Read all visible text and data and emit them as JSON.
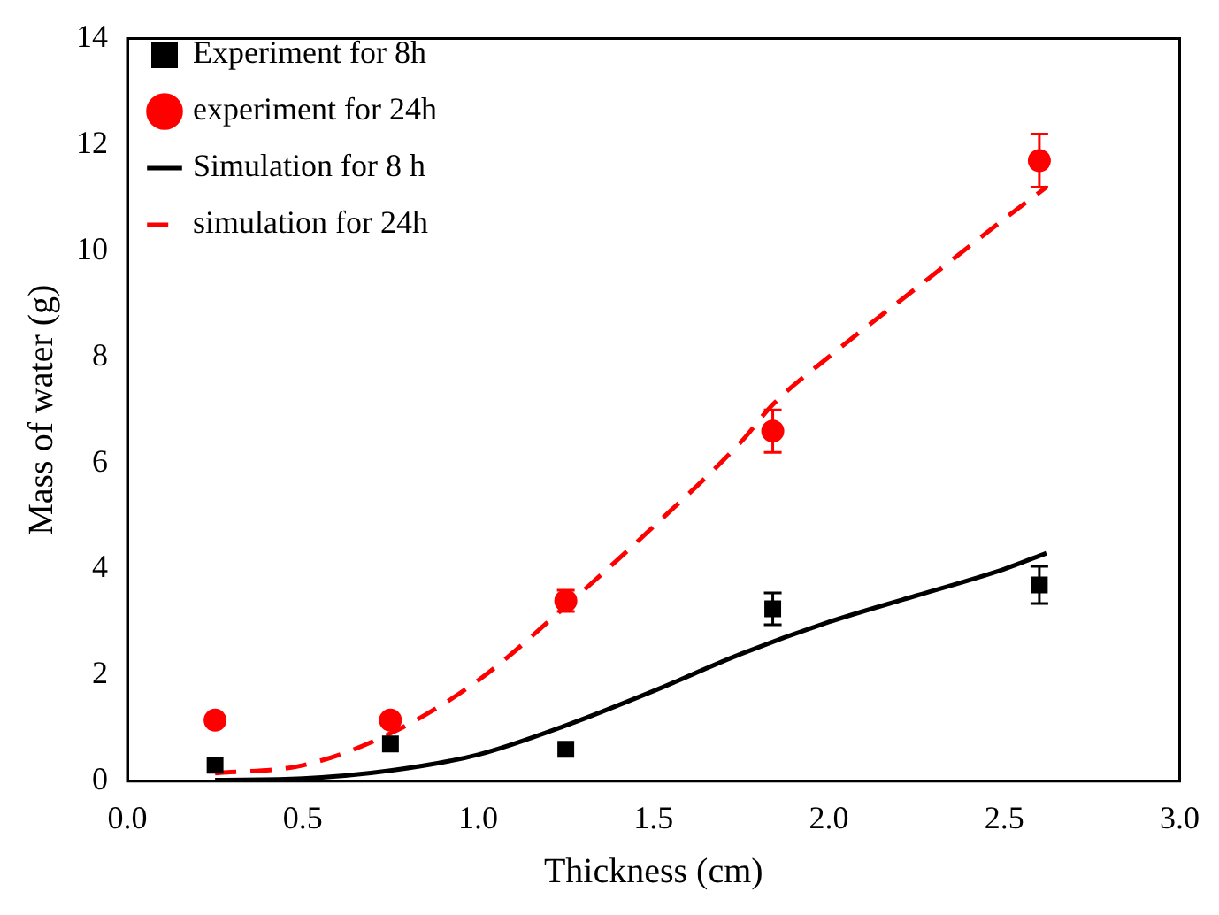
{
  "chart_data": {
    "type": "scatter",
    "xlabel": "Thickness (cm)",
    "ylabel": "Mass of water (g)",
    "xlim": [
      0,
      3
    ],
    "xticks": [
      {
        "value": 0,
        "label": "0.0"
      },
      {
        "value": 0.5,
        "label": "0.5"
      },
      {
        "value": 1,
        "label": "1.0"
      },
      {
        "value": 1.5,
        "label": "1.5"
      },
      {
        "value": 2,
        "label": "2.0"
      },
      {
        "value": 2.5,
        "label": "2.5"
      },
      {
        "value": 3,
        "label": "3.0"
      }
    ],
    "ylim": [
      0,
      14
    ],
    "yticks": [
      0,
      2,
      4,
      6,
      8,
      10,
      12,
      14
    ],
    "legend": "top left",
    "grid": false,
    "series": [
      {
        "name": "Experiment for 8h",
        "type": "scatter",
        "marker": "square",
        "color": "#000000",
        "x": [
          0.25,
          0.75,
          1.25,
          1.84,
          2.6
        ],
        "values": [
          0.3,
          0.7,
          0.6,
          3.25,
          3.7
        ],
        "errors": [
          null,
          null,
          null,
          0.3,
          0.35
        ]
      },
      {
        "name": "experiment for 24h",
        "type": "scatter",
        "marker": "circle",
        "color": "#ff0000",
        "x": [
          0.25,
          0.75,
          1.25,
          1.84,
          2.6
        ],
        "values": [
          1.15,
          1.15,
          3.4,
          6.6,
          11.7
        ],
        "errors": [
          null,
          null,
          0.2,
          0.4,
          0.5
        ]
      },
      {
        "name": "Simulation for 8 h",
        "type": "line",
        "marker": "none",
        "line_style": "solid",
        "color": "#000000",
        "x": [
          0.25,
          0.5,
          0.75,
          1.0,
          1.25,
          1.5,
          1.75,
          2.0,
          2.25,
          2.5,
          2.62
        ],
        "values": [
          0.02,
          0.05,
          0.2,
          0.5,
          1.05,
          1.7,
          2.4,
          3.0,
          3.5,
          4.0,
          4.3
        ]
      },
      {
        "name": "simulation for 24h",
        "type": "line",
        "marker": "none",
        "line_style": "dashed",
        "color": "#ff0000",
        "x": [
          0.25,
          0.5,
          0.75,
          1.0,
          1.25,
          1.5,
          1.75,
          1.84,
          2.0,
          2.25,
          2.5,
          2.62
        ],
        "values": [
          0.15,
          0.3,
          0.9,
          1.9,
          3.3,
          4.8,
          6.4,
          7.1,
          8.0,
          9.3,
          10.6,
          11.2
        ]
      }
    ]
  }
}
